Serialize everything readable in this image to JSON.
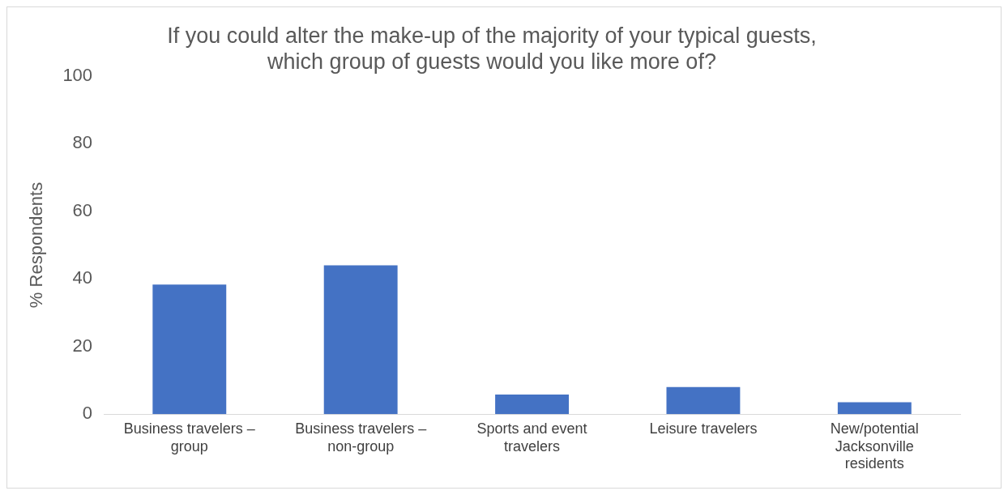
{
  "chart_data": {
    "type": "bar",
    "title": [
      "If you could alter the make-up of the majority of your typical guests,",
      "which group of guests would you like more of?"
    ],
    "ylabel": "% Respondents",
    "categories": [
      [
        "Business travelers –",
        "group"
      ],
      [
        "Business travelers –",
        "non-group"
      ],
      [
        "Sports and event",
        "travelers"
      ],
      [
        "Leisure travelers"
      ],
      [
        "New/potential",
        "Jacksonville",
        "residents"
      ]
    ],
    "values": [
      38.3,
      44,
      5.8,
      8,
      3.5
    ],
    "color": "#4472c4",
    "ylim": [
      0,
      100
    ],
    "yticks": [
      0,
      20,
      40,
      60,
      80,
      100
    ],
    "grid": false,
    "legend": false
  }
}
